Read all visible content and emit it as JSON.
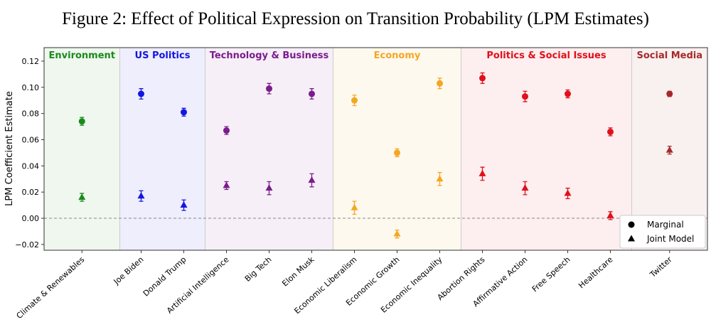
{
  "chart_data": {
    "type": "errorbar",
    "title": "Figure 2: Effect of Political Expression on Transition Probability (LPM Estimates)",
    "y_label": "LPM Coefficient Estimate",
    "groups": [
      {
        "name": "Environment",
        "color": "#1a8a1a",
        "categories": [
          "Climate & Renewables"
        ]
      },
      {
        "name": "US Politics",
        "color": "#1515e0",
        "categories": [
          "Joe Biden",
          "Donald Trump"
        ]
      },
      {
        "name": "Technology & Business",
        "color": "#7b1c8c",
        "categories": [
          "Artificial Intelligence",
          "Big Tech",
          "Elon Musk"
        ]
      },
      {
        "name": "Economy",
        "color": "#f5a623",
        "categories": [
          "Economic Liberalism",
          "Economic Growth",
          "Economic Inequality"
        ]
      },
      {
        "name": "Politics & Social Issues",
        "color": "#e0101a",
        "categories": [
          "Abortion Rights",
          "Affirmative Action",
          "Free Speech",
          "Healthcare"
        ]
      },
      {
        "name": "Social Media",
        "color": "#a52a2a",
        "categories": [
          "Twitter"
        ]
      }
    ],
    "series": [
      {
        "name": "Marginal",
        "marker": "circle",
        "values": [
          0.074,
          0.095,
          0.081,
          0.067,
          0.099,
          0.095,
          0.09,
          0.05,
          0.103,
          0.107,
          0.093,
          0.095,
          0.066,
          0.095
        ],
        "errors": [
          0.003,
          0.004,
          0.003,
          0.003,
          0.004,
          0.004,
          0.004,
          0.003,
          0.004,
          0.004,
          0.004,
          0.003,
          0.003,
          0.002
        ]
      },
      {
        "name": "Joint Model",
        "marker": "triangle",
        "values": [
          0.016,
          0.017,
          0.01,
          0.025,
          0.023,
          0.029,
          0.008,
          -0.012,
          0.03,
          0.034,
          0.023,
          0.019,
          0.002,
          0.052
        ],
        "errors": [
          0.003,
          0.004,
          0.004,
          0.003,
          0.005,
          0.005,
          0.005,
          0.003,
          0.005,
          0.005,
          0.005,
          0.004,
          0.003,
          0.003
        ]
      }
    ],
    "ylim": [
      -0.0244,
      0.1303
    ],
    "yticks": [
      {
        "value": -0.02,
        "label": "−0.02"
      },
      {
        "value": 0,
        "label": "0.00"
      },
      0.02,
      0.04,
      0.06,
      0.08,
      {
        "value": 0.1,
        "label": "0.10"
      },
      0.12
    ],
    "legend_position": "lower right"
  }
}
